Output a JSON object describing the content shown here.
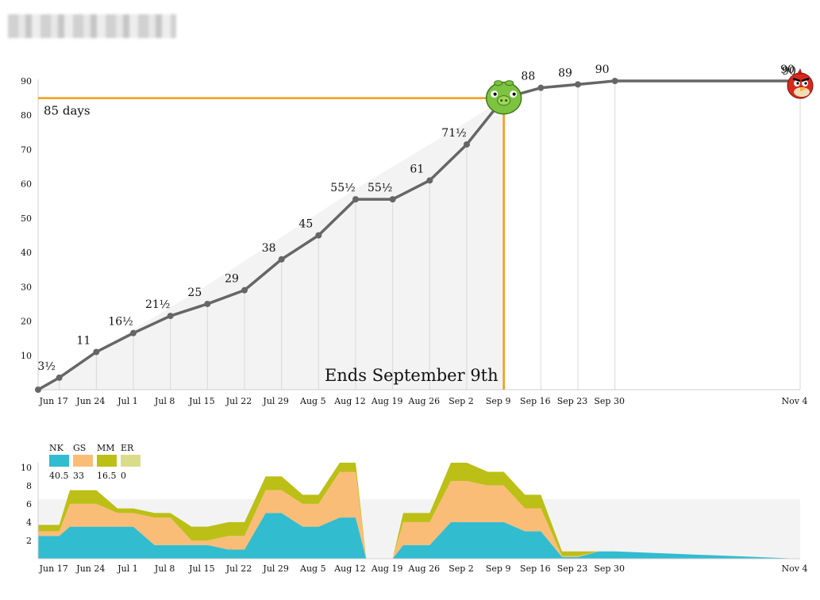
{
  "chart_data": [
    {
      "type": "line",
      "x": [
        "2013-06-13",
        "2013-06-17",
        "2013-06-24",
        "2013-07-01",
        "2013-07-08",
        "2013-07-15",
        "2013-07-22",
        "2013-07-29",
        "2013-08-05",
        "2013-08-12",
        "2013-08-19",
        "2013-08-26",
        "2013-09-02",
        "2013-09-09",
        "2013-09-16",
        "2013-09-23",
        "2013-09-30",
        "2013-11-04"
      ],
      "values": [
        0,
        3.5,
        11,
        16.5,
        21.5,
        25,
        29,
        38,
        45,
        55.5,
        55.5,
        61,
        71.5,
        85,
        88,
        89,
        90,
        90
      ],
      "labels": [
        "",
        "3½",
        "11",
        "16½",
        "21½",
        "25",
        "29",
        "38",
        "45",
        "55½",
        "55½",
        "61",
        "71½",
        "",
        "88",
        "89",
        "90",
        "90"
      ],
      "target_band_upper": [
        0,
        3.5,
        11,
        17.5,
        24,
        30.5,
        37.5,
        44.5,
        51.5,
        58.5,
        65,
        71.5,
        78,
        85
      ],
      "xtick_labels": [
        "Jun 17",
        "Jun 24",
        "Jul 1",
        "Jul 8",
        "Jul 15",
        "Jul 22",
        "Jul 29",
        "Aug 5",
        "Aug 12",
        "Aug 19",
        "Aug 26",
        "Sep 2",
        "Sep 9",
        "Sep 16",
        "Sep 23",
        "Sep 30",
        "Nov 4"
      ],
      "xtick_dates": [
        "2013-06-17",
        "2013-06-24",
        "2013-07-01",
        "2013-07-08",
        "2013-07-15",
        "2013-07-22",
        "2013-07-29",
        "2013-08-05",
        "2013-08-12",
        "2013-08-19",
        "2013-08-26",
        "2013-09-02",
        "2013-09-09",
        "2013-09-16",
        "2013-09-23",
        "2013-09-30",
        "2013-11-04"
      ],
      "yticks": [
        10,
        20,
        30,
        40,
        50,
        60,
        70,
        80,
        90
      ],
      "ylim": [
        0,
        90
      ],
      "grid": "vertical",
      "annotations": {
        "days_label": "85 days",
        "days_value": 85,
        "deadline_label": "Ends September 9th",
        "deadline_date": "2013-09-09"
      },
      "colors": {
        "line": "#666666",
        "deadline": "#f39c12",
        "band": "#f3f3f3"
      },
      "icons": {
        "deadline_marker": "green-pig-icon",
        "end_marker": "red-angry-bird-icon"
      }
    },
    {
      "type": "area",
      "stacked": true,
      "x": [
        "2013-06-13",
        "2013-06-17",
        "2013-06-19",
        "2013-06-24",
        "2013-06-28",
        "2013-07-01",
        "2013-07-05",
        "2013-07-08",
        "2013-07-12",
        "2013-07-15",
        "2013-07-19",
        "2013-07-22",
        "2013-07-26",
        "2013-07-29",
        "2013-08-02",
        "2013-08-05",
        "2013-08-09",
        "2013-08-12",
        "2013-08-14",
        "2013-08-19",
        "2013-08-21",
        "2013-08-26",
        "2013-08-30",
        "2013-09-02",
        "2013-09-06",
        "2013-09-09",
        "2013-09-13",
        "2013-09-16",
        "2013-09-20",
        "2013-09-23",
        "2013-09-27",
        "2013-09-30",
        "2013-11-04"
      ],
      "series": [
        {
          "name": "NK",
          "total": "40.5",
          "values": [
            2.5,
            2.5,
            3.5,
            3.5,
            3.5,
            3.5,
            1.5,
            1.5,
            1.5,
            1.5,
            1.0,
            1.0,
            5.0,
            5.0,
            3.5,
            3.5,
            4.5,
            4.5,
            0,
            0,
            1.5,
            1.5,
            4.0,
            4.0,
            4.0,
            4.0,
            3.0,
            3.0,
            0.2,
            0.2,
            0.8,
            0.8,
            0
          ]
        },
        {
          "name": "GS",
          "total": "33",
          "values": [
            0.5,
            0.5,
            2.5,
            2.5,
            1.5,
            1.5,
            3.0,
            3.0,
            0.5,
            0.5,
            1.5,
            1.5,
            2.5,
            2.5,
            2.5,
            2.5,
            5.0,
            5.0,
            0,
            0,
            2.5,
            2.5,
            4.5,
            4.5,
            4.0,
            4.0,
            2.5,
            2.5,
            0.1,
            0.1,
            0,
            0,
            0
          ]
        },
        {
          "name": "MM",
          "total": "16.5",
          "values": [
            0.7,
            0.7,
            1.5,
            1.5,
            0.5,
            0.5,
            0.5,
            0.5,
            1.5,
            1.5,
            1.5,
            1.5,
            1.5,
            1.5,
            1.0,
            1.0,
            1.0,
            1.0,
            0,
            0,
            1.0,
            1.0,
            2.0,
            2.0,
            1.5,
            1.5,
            1.5,
            1.5,
            0.5,
            0.5,
            0,
            0,
            0
          ]
        },
        {
          "name": "ER",
          "total": "0",
          "values": [
            0,
            0,
            0,
            0,
            0,
            0,
            0,
            0,
            0,
            0,
            0,
            0,
            0,
            0,
            0,
            0,
            0,
            0,
            0,
            0,
            0,
            0,
            0,
            0,
            0,
            0,
            0,
            0,
            0,
            0,
            0,
            0,
            0
          ]
        }
      ],
      "reference_band": 6.5,
      "xtick_labels": [
        "Jun 17",
        "Jun 24",
        "Jul 1",
        "Jul 8",
        "Jul 15",
        "Jul 22",
        "Jul 29",
        "Aug 5",
        "Aug 12",
        "Aug 19",
        "Aug 26",
        "Sep 2",
        "Sep 9",
        "Sep 16",
        "Sep 23",
        "Sep 30",
        "Nov 4"
      ],
      "xtick_dates": [
        "2013-06-17",
        "2013-06-24",
        "2013-07-01",
        "2013-07-08",
        "2013-07-15",
        "2013-07-22",
        "2013-07-29",
        "2013-08-05",
        "2013-08-12",
        "2013-08-19",
        "2013-08-26",
        "2013-09-02",
        "2013-09-09",
        "2013-09-16",
        "2013-09-23",
        "2013-09-30",
        "2013-11-04"
      ],
      "yticks": [
        2,
        4,
        6,
        8,
        10
      ],
      "ylim": [
        0,
        10.5
      ],
      "legend_position": "top-left",
      "colors": {
        "NK": "#31bcd0",
        "GS": "#f9bd77",
        "MM": "#bcbf16",
        "ER": "#dbdc8a",
        "band": "#f3f3f3"
      }
    }
  ]
}
